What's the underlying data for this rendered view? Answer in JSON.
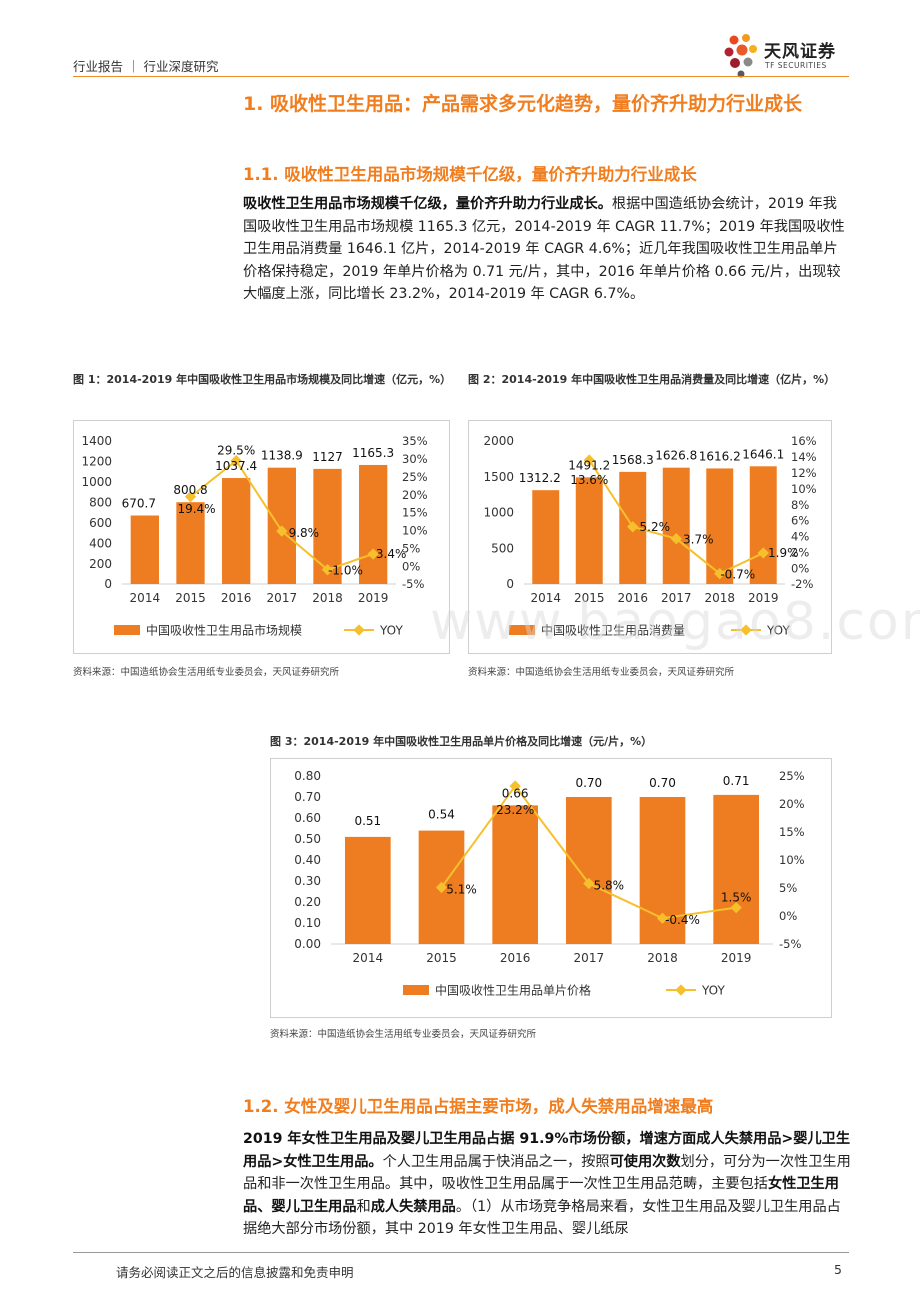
{
  "header": {
    "breadcrumb": "行业报告 ｜ 行业深度研究",
    "logo_cn": "天风证券",
    "logo_en": "TF SECURITIES"
  },
  "heading1": "1. 吸收性卫生用品：产品需求多元化趋势，量价齐升助力行业成长",
  "section1": {
    "heading": "1.1. 吸收性卫生用品市场规模千亿级，量价齐升助力行业成长",
    "para_bold": "吸收性卫生用品市场规模千亿级，量价齐升助力行业成长。",
    "para_text": "根据中国造纸协会统计，2019 年我国吸收性卫生用品市场规模 1165.3 亿元，2014-2019 年 CAGR 11.7%；2019 年我国吸收性卫生用品消费量 1646.1 亿片，2014-2019 年 CAGR 4.6%；近几年我国吸收性卫生用品单片价格保持稳定，2019 年单片价格为 0.71 元/片，其中，2016 年单片价格 0.66 元/片，出现较大幅度上涨，同比增长 23.2%，2014-2019 年 CAGR 6.7%。"
  },
  "figures": [
    {
      "caption": "图 1：2014-2019 年中国吸收性卫生用品市场规模及同比增速（亿元，%）",
      "source": "资料来源：中国造纸协会生活用纸专业委员会，天风证券研究所"
    },
    {
      "caption": "图 2：2014-2019 年中国吸收性卫生用品消费量及同比增速（亿片，%）",
      "source": "资料来源：中国造纸协会生活用纸专业委员会，天风证券研究所"
    },
    {
      "caption": "图 3：2014-2019 年中国吸收性卫生用品单片价格及同比增速（元/片，%）",
      "source": "资料来源：中国造纸协会生活用纸专业委员会，天风证券研究所"
    }
  ],
  "chart_data": [
    {
      "type": "bar",
      "categories": [
        "2014",
        "2015",
        "2016",
        "2017",
        "2018",
        "2019"
      ],
      "series": [
        {
          "name": "中国吸收性卫生用品市场规模",
          "type": "bar",
          "axis": "left",
          "values": [
            670.7,
            800.8,
            1037.4,
            1138.9,
            1127,
            1165.3
          ],
          "labels": [
            "670.7",
            "800.8",
            "1037.4",
            "1138.9",
            "1127",
            "1165.3"
          ]
        },
        {
          "name": "YOY",
          "type": "line",
          "axis": "right",
          "values": [
            null,
            19.4,
            29.5,
            9.8,
            -1.0,
            3.4
          ],
          "labels": [
            "",
            "19.4%",
            "29.5%",
            "9.8%",
            "-1.0%",
            "3.4%"
          ]
        }
      ],
      "ylim_left": [
        0,
        1400
      ],
      "yticks_left": [
        0,
        200,
        400,
        600,
        800,
        1000,
        1200,
        1400
      ],
      "yticks_left_labels": [
        "0",
        "200",
        "400",
        "600",
        "800",
        "1000",
        "1200",
        "1400"
      ],
      "ylim_right": [
        -5,
        35
      ],
      "yticks_right": [
        -5,
        0,
        5,
        10,
        15,
        20,
        25,
        30,
        35
      ],
      "yticks_right_labels": [
        "-5%",
        "0%",
        "5%",
        "10%",
        "15%",
        "20%",
        "25%",
        "30%",
        "35%"
      ],
      "legend": "bottom"
    },
    {
      "type": "bar",
      "categories": [
        "2014",
        "2015",
        "2016",
        "2017",
        "2018",
        "2019"
      ],
      "series": [
        {
          "name": "中国吸收性卫生用品消费量",
          "type": "bar",
          "axis": "left",
          "values": [
            1312.2,
            1491.2,
            1568.3,
            1626.8,
            1616.2,
            1646.1
          ],
          "labels": [
            "1312.2",
            "1491.2",
            "1568.3",
            "1626.8",
            "1616.2",
            "1646.1"
          ]
        },
        {
          "name": "YOY",
          "type": "line",
          "axis": "right",
          "values": [
            null,
            13.6,
            5.2,
            3.7,
            -0.7,
            1.9
          ],
          "labels": [
            "",
            "13.6%",
            "5.2%",
            "3.7%",
            "-0.7%",
            "1.9%"
          ]
        }
      ],
      "ylim_left": [
        0,
        2000
      ],
      "yticks_left": [
        0,
        500,
        1000,
        1500,
        2000
      ],
      "yticks_left_labels": [
        "0",
        "500",
        "1000",
        "1500",
        "2000"
      ],
      "ylim_right": [
        -2,
        16
      ],
      "yticks_right": [
        -2,
        0,
        2,
        4,
        6,
        8,
        10,
        12,
        14,
        16
      ],
      "yticks_right_labels": [
        "-2%",
        "0%",
        "2%",
        "4%",
        "6%",
        "8%",
        "10%",
        "12%",
        "14%",
        "16%"
      ],
      "legend": "bottom"
    },
    {
      "type": "bar",
      "categories": [
        "2014",
        "2015",
        "2016",
        "2017",
        "2018",
        "2019"
      ],
      "series": [
        {
          "name": "中国吸收性卫生用品单片价格",
          "type": "bar",
          "axis": "left",
          "values": [
            0.51,
            0.54,
            0.66,
            0.7,
            0.7,
            0.71
          ],
          "labels": [
            "0.51",
            "0.54",
            "0.66",
            "0.70",
            "0.70",
            "0.71"
          ]
        },
        {
          "name": "YOY",
          "type": "line",
          "axis": "right",
          "values": [
            null,
            5.1,
            23.2,
            5.8,
            -0.4,
            1.5
          ],
          "labels": [
            "",
            "5.1%",
            "23.2%",
            "5.8%",
            "-0.4%",
            "1.5%"
          ]
        }
      ],
      "ylim_left": [
        0,
        0.8
      ],
      "yticks_left": [
        0,
        0.1,
        0.2,
        0.3,
        0.4,
        0.5,
        0.6,
        0.7,
        0.8
      ],
      "yticks_left_labels": [
        "0.00",
        "0.10",
        "0.20",
        "0.30",
        "0.40",
        "0.50",
        "0.60",
        "0.70",
        "0.80"
      ],
      "ylim_right": [
        -5,
        25
      ],
      "yticks_right": [
        -5,
        0,
        5,
        10,
        15,
        20,
        25
      ],
      "yticks_right_labels": [
        "-5%",
        "0%",
        "5%",
        "10%",
        "15%",
        "20%",
        "25%"
      ],
      "legend": "bottom"
    }
  ],
  "section2": {
    "heading": "1.2. 女性及婴儿卫生用品占据主要市场，成人失禁用品增速最高",
    "bold1": "2019 年女性卫生用品及婴儿卫生用品占据 91.9%市场份额，增速方面成人失禁用品>婴儿卫生用品>女性卫生用品。",
    "text1": "个人卫生用品属于快消品之一，按照",
    "bold2": "可使用次数",
    "text2": "划分，可分为一次性卫生用品和非一次性卫生用品。其中，吸收性卫生用品属于一次性卫生用品范畴，主要包括",
    "bold3": "女性卫生用品、婴儿卫生用品",
    "text3": "和",
    "bold4": "成人失禁用品",
    "text4": "。（1）从市场竞争格局来看，女性卫生用品及婴儿卫生用品占据绝大部分市场份额，其中 2019 年女性卫生用品、婴儿纸尿"
  },
  "watermark": "www.baogao8.com",
  "footer": {
    "disclaimer": "请务必阅读正文之后的信息披露和免责申明",
    "page": "5"
  },
  "colors": {
    "accent": "#f07e1f",
    "bar": "#ee7d22",
    "line": "#f5c02c"
  }
}
